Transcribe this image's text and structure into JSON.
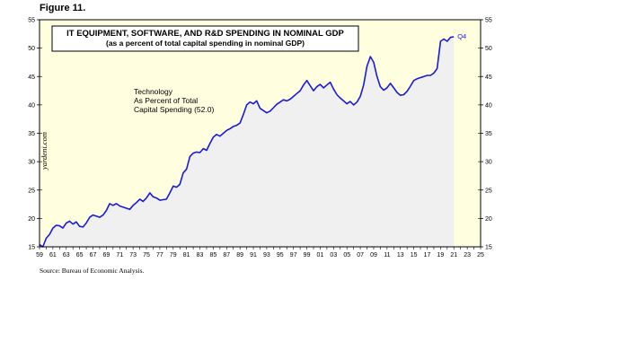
{
  "figure_label": "Figure 11.",
  "source": "Source: Bureau of Economic Analysis.",
  "watermark": "yardeni.com",
  "colors": {
    "line": "#1a1adb",
    "plot_background": "#ffffe0",
    "area_fill": "#f0f0f0",
    "forecast_band": "#ffffe0",
    "frame": "#000000"
  },
  "chart_data": {
    "type": "line",
    "title": "IT EQUIPMENT, SOFTWARE, AND R&D SPENDING IN NOMINAL GDP",
    "subtitle": "(as a percent of total capital spending in nominal GDP)",
    "annotation": "Technology\nAs Percent of Total\nCapital Spending (52.0)",
    "end_label": "Q4",
    "xlabel": "",
    "ylabel": "",
    "xlim": [
      1959,
      2025
    ],
    "ylim": [
      15,
      55
    ],
    "yticks": [
      15,
      20,
      25,
      30,
      35,
      40,
      45,
      50,
      55
    ],
    "xtick_labels": [
      "59",
      "61",
      "63",
      "65",
      "67",
      "69",
      "71",
      "73",
      "75",
      "77",
      "79",
      "81",
      "83",
      "85",
      "87",
      "89",
      "91",
      "93",
      "95",
      "97",
      "99",
      "01",
      "03",
      "05",
      "07",
      "09",
      "11",
      "13",
      "15",
      "17",
      "19",
      "21",
      "23",
      "25"
    ],
    "grid": false,
    "legend": "none",
    "series": [
      {
        "values": [
          [
            1959.0,
            15.4
          ],
          [
            1959.5,
            15.0
          ],
          [
            1960.0,
            16.5
          ],
          [
            1960.5,
            17.2
          ],
          [
            1961.0,
            18.3
          ],
          [
            1961.5,
            18.8
          ],
          [
            1962.0,
            18.7
          ],
          [
            1962.5,
            18.3
          ],
          [
            1963.0,
            19.2
          ],
          [
            1963.5,
            19.5
          ],
          [
            1964.0,
            19.0
          ],
          [
            1964.5,
            19.4
          ],
          [
            1965.0,
            18.6
          ],
          [
            1965.5,
            18.5
          ],
          [
            1966.0,
            19.2
          ],
          [
            1966.5,
            20.2
          ],
          [
            1967.0,
            20.6
          ],
          [
            1967.5,
            20.4
          ],
          [
            1968.0,
            20.2
          ],
          [
            1968.5,
            20.6
          ],
          [
            1969.0,
            21.4
          ],
          [
            1969.5,
            22.6
          ],
          [
            1970.0,
            22.3
          ],
          [
            1970.5,
            22.6
          ],
          [
            1971.0,
            22.2
          ],
          [
            1971.5,
            22.0
          ],
          [
            1972.0,
            21.8
          ],
          [
            1972.5,
            21.6
          ],
          [
            1973.0,
            22.3
          ],
          [
            1973.5,
            22.8
          ],
          [
            1974.0,
            23.4
          ],
          [
            1974.5,
            23.0
          ],
          [
            1975.0,
            23.6
          ],
          [
            1975.5,
            24.5
          ],
          [
            1976.0,
            23.8
          ],
          [
            1976.5,
            23.6
          ],
          [
            1977.0,
            23.2
          ],
          [
            1977.5,
            23.3
          ],
          [
            1978.0,
            23.4
          ],
          [
            1978.5,
            24.5
          ],
          [
            1979.0,
            25.7
          ],
          [
            1979.5,
            25.5
          ],
          [
            1980.0,
            26.0
          ],
          [
            1980.5,
            28.0
          ],
          [
            1981.0,
            28.7
          ],
          [
            1981.5,
            30.9
          ],
          [
            1982.0,
            31.5
          ],
          [
            1982.5,
            31.7
          ],
          [
            1983.0,
            31.6
          ],
          [
            1983.5,
            32.3
          ],
          [
            1984.0,
            32.0
          ],
          [
            1984.5,
            33.2
          ],
          [
            1985.0,
            34.3
          ],
          [
            1985.5,
            34.8
          ],
          [
            1986.0,
            34.5
          ],
          [
            1986.5,
            35.0
          ],
          [
            1987.0,
            35.5
          ],
          [
            1987.5,
            35.8
          ],
          [
            1988.0,
            36.2
          ],
          [
            1988.5,
            36.4
          ],
          [
            1989.0,
            36.8
          ],
          [
            1989.5,
            38.3
          ],
          [
            1990.0,
            40.0
          ],
          [
            1990.5,
            40.5
          ],
          [
            1991.0,
            40.2
          ],
          [
            1991.5,
            40.7
          ],
          [
            1992.0,
            39.4
          ],
          [
            1992.5,
            39.0
          ],
          [
            1993.0,
            38.6
          ],
          [
            1993.5,
            38.9
          ],
          [
            1994.0,
            39.5
          ],
          [
            1994.5,
            40.1
          ],
          [
            1995.0,
            40.5
          ],
          [
            1995.5,
            40.9
          ],
          [
            1996.0,
            40.7
          ],
          [
            1996.5,
            41.0
          ],
          [
            1997.0,
            41.5
          ],
          [
            1997.5,
            42.0
          ],
          [
            1998.0,
            42.5
          ],
          [
            1998.5,
            43.5
          ],
          [
            1999.0,
            44.3
          ],
          [
            1999.5,
            43.4
          ],
          [
            2000.0,
            42.5
          ],
          [
            2000.5,
            43.2
          ],
          [
            2001.0,
            43.6
          ],
          [
            2001.5,
            43.0
          ],
          [
            2002.0,
            43.5
          ],
          [
            2002.5,
            44.0
          ],
          [
            2003.0,
            42.8
          ],
          [
            2003.5,
            41.8
          ],
          [
            2004.0,
            41.2
          ],
          [
            2004.5,
            40.7
          ],
          [
            2005.0,
            40.2
          ],
          [
            2005.5,
            40.6
          ],
          [
            2006.0,
            40.0
          ],
          [
            2006.5,
            40.5
          ],
          [
            2007.0,
            41.5
          ],
          [
            2007.5,
            43.5
          ],
          [
            2008.0,
            46.8
          ],
          [
            2008.5,
            48.5
          ],
          [
            2009.0,
            47.5
          ],
          [
            2009.5,
            45.0
          ],
          [
            2010.0,
            43.2
          ],
          [
            2010.5,
            42.6
          ],
          [
            2011.0,
            43.0
          ],
          [
            2011.5,
            43.8
          ],
          [
            2012.0,
            43.0
          ],
          [
            2012.5,
            42.2
          ],
          [
            2013.0,
            41.7
          ],
          [
            2013.5,
            41.8
          ],
          [
            2014.0,
            42.4
          ],
          [
            2014.5,
            43.3
          ],
          [
            2015.0,
            44.3
          ],
          [
            2015.5,
            44.6
          ],
          [
            2016.0,
            44.8
          ],
          [
            2016.5,
            45.0
          ],
          [
            2017.0,
            45.2
          ],
          [
            2017.5,
            45.2
          ],
          [
            2018.0,
            45.6
          ],
          [
            2018.5,
            46.4
          ],
          [
            2019.0,
            51.2
          ],
          [
            2019.5,
            51.6
          ],
          [
            2020.0,
            51.2
          ],
          [
            2020.5,
            51.9
          ],
          [
            2021.0,
            52.0
          ]
        ]
      }
    ]
  }
}
